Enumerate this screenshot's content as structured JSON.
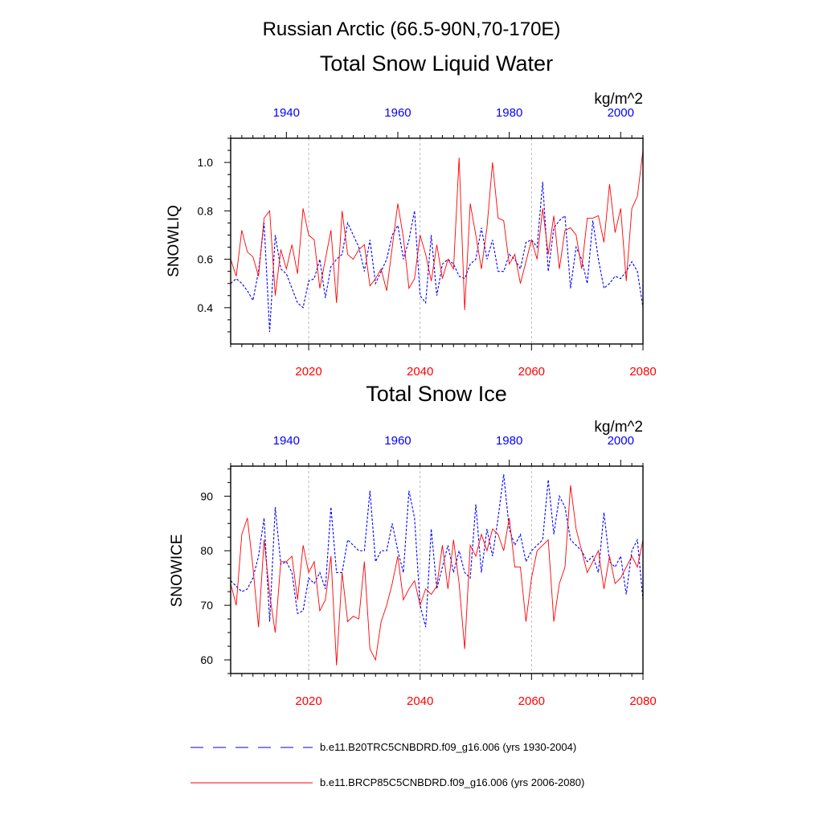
{
  "figure_title": "Russian Arctic (66.5-90N,70-170E)",
  "colors": {
    "historical": "#0000ff",
    "future": "#ff0000",
    "axis": "#000000",
    "grid": "#aaaaaa"
  },
  "legend": [
    {
      "label": "b.e11.B20TRC5CNBDRD.f09_g16.006 (yrs 1930-2004)",
      "style": "dashed",
      "color": "#0000ff"
    },
    {
      "label": "b.e11.BRCP85C5CNBDRD.f09_g16.006 (yrs 2006-2080)",
      "style": "solid",
      "color": "#ff0000"
    }
  ],
  "chart_data": [
    {
      "type": "line",
      "title": "Total Snow Liquid Water",
      "ylabel": "SNOWLIQ",
      "units": "kg/m^2",
      "ylim": [
        0.25,
        1.1
      ],
      "yticks": [
        0.4,
        0.6,
        0.8,
        1.0
      ],
      "ytick_labels": [
        "0.4",
        "0.6",
        "0.8",
        "1.0"
      ],
      "bottom_axis": {
        "range": [
          2006,
          2080
        ],
        "ticks": [
          2020,
          2040,
          2060,
          2080
        ],
        "tick_labels": [
          "2020",
          "2040",
          "2060",
          "2080"
        ]
      },
      "top_axis": {
        "range": [
          1930,
          2004
        ],
        "ticks": [
          1940,
          1960,
          1980,
          2000
        ],
        "tick_labels": [
          "1940",
          "1960",
          "1980",
          "2000"
        ]
      },
      "series": [
        {
          "name": "b.e11.B20TRC5CNBDRD.f09_g16.006 (yrs 1930-2004)",
          "axis": "top",
          "x_start": 1930,
          "values": [
            0.5,
            0.52,
            0.5,
            0.47,
            0.43,
            0.55,
            0.75,
            0.3,
            0.7,
            0.56,
            0.54,
            0.48,
            0.42,
            0.4,
            0.51,
            0.52,
            0.6,
            0.44,
            0.57,
            0.6,
            0.62,
            0.75,
            0.7,
            0.65,
            0.55,
            0.68,
            0.5,
            0.55,
            0.6,
            0.7,
            0.74,
            0.6,
            0.68,
            0.8,
            0.45,
            0.42,
            0.7,
            0.45,
            0.58,
            0.6,
            0.58,
            0.53,
            0.52,
            0.58,
            0.6,
            0.73,
            0.6,
            0.68,
            0.55,
            0.55,
            0.62,
            0.6,
            0.56,
            0.67,
            0.68,
            0.65,
            0.92,
            0.55,
            0.73,
            0.76,
            0.78,
            0.48,
            0.65,
            0.6,
            0.5,
            0.76,
            0.6,
            0.48,
            0.5,
            0.53,
            0.52,
            0.55,
            0.59,
            0.55,
            0.4
          ]
        },
        {
          "name": "b.e11.BRCP85C5CNBDRD.f09_g16.006 (yrs 2006-2080)",
          "axis": "bottom",
          "x_start": 2006,
          "values": [
            0.6,
            0.53,
            0.72,
            0.63,
            0.61,
            0.53,
            0.77,
            0.8,
            0.45,
            0.64,
            0.56,
            0.66,
            0.54,
            0.81,
            0.7,
            0.68,
            0.48,
            0.6,
            0.72,
            0.42,
            0.8,
            0.62,
            0.6,
            0.64,
            0.66,
            0.49,
            0.52,
            0.56,
            0.47,
            0.65,
            0.83,
            0.69,
            0.48,
            0.52,
            0.7,
            0.62,
            0.51,
            0.66,
            0.52,
            0.6,
            0.56,
            1.02,
            0.39,
            0.83,
            0.7,
            0.56,
            0.73,
            1.0,
            0.77,
            0.76,
            0.58,
            0.62,
            0.5,
            0.59,
            0.68,
            0.6,
            0.81,
            0.62,
            0.78,
            0.56,
            0.72,
            0.73,
            0.7,
            0.56,
            0.77,
            0.77,
            0.78,
            0.67,
            0.91,
            0.71,
            0.81,
            0.51,
            0.81,
            0.86,
            1.05
          ]
        }
      ]
    },
    {
      "type": "line",
      "title": "Total Snow Ice",
      "ylabel": "SNOWICE",
      "units": "kg/m^2",
      "ylim": [
        57.5,
        95.5
      ],
      "yticks": [
        60,
        70,
        80,
        90
      ],
      "ytick_labels": [
        "60",
        "70",
        "80",
        "90"
      ],
      "bottom_axis": {
        "range": [
          2006,
          2080
        ],
        "ticks": [
          2020,
          2040,
          2060,
          2080
        ],
        "tick_labels": [
          "2020",
          "2040",
          "2060",
          "2080"
        ]
      },
      "top_axis": {
        "range": [
          1930,
          2004
        ],
        "ticks": [
          1940,
          1960,
          1980,
          2000
        ],
        "tick_labels": [
          "1940",
          "1960",
          "1980",
          "2000"
        ]
      },
      "series": [
        {
          "name": "b.e11.B20TRC5CNBDRD.f09_g16.006 (yrs 1930-2004)",
          "axis": "top",
          "x_start": 1930,
          "values": [
            74.5,
            73.5,
            72.5,
            73.0,
            75.0,
            79.0,
            86.0,
            67.0,
            88.0,
            77.5,
            78.0,
            76.0,
            68.5,
            69.0,
            75.0,
            74.0,
            76.0,
            73.0,
            88.0,
            76.0,
            76.0,
            82.0,
            81.0,
            80.0,
            80.0,
            91.0,
            78.0,
            80.0,
            80.0,
            85.0,
            80.0,
            76.0,
            91.0,
            86.0,
            70.0,
            66.0,
            84.0,
            73.0,
            77.0,
            81.0,
            76.0,
            80.0,
            76.0,
            75.0,
            88.5,
            76.0,
            84.0,
            79.0,
            86.0,
            94.0,
            84.0,
            81.0,
            83.0,
            78.0,
            80.0,
            81.0,
            82.0,
            93.0,
            83.0,
            90.0,
            88.0,
            82.0,
            81.0,
            80.0,
            78.0,
            79.0,
            76.0,
            87.0,
            78.0,
            77.0,
            79.0,
            72.0,
            80.0,
            82.0,
            71.0
          ]
        },
        {
          "name": "b.e11.BRCP85C5CNBDRD.f09_g16.006 (yrs 2006-2080)",
          "axis": "bottom",
          "x_start": 2006,
          "values": [
            74.0,
            70.0,
            83.0,
            86.0,
            77.0,
            66.0,
            82.0,
            72.0,
            65.0,
            78.0,
            78.0,
            79.0,
            71.0,
            81.0,
            76.0,
            78.0,
            69.0,
            71.0,
            79.0,
            59.0,
            76.0,
            67.0,
            68.0,
            67.5,
            78.0,
            62.0,
            60.0,
            67.0,
            70.0,
            74.0,
            79.0,
            71.0,
            73.0,
            74.5,
            70.0,
            73.0,
            72.0,
            73.5,
            81.0,
            73.0,
            82.0,
            74.0,
            62.0,
            81.0,
            79.0,
            83.0,
            80.0,
            84.0,
            83.0,
            80.0,
            86.0,
            77.0,
            77.0,
            67.0,
            75.0,
            80.0,
            81.0,
            82.0,
            67.0,
            74.0,
            77.0,
            92.0,
            84.0,
            80.0,
            76.0,
            78.0,
            80.0,
            73.0,
            79.0,
            74.0,
            75.0,
            77.0,
            79.0,
            77.0,
            82.0
          ]
        }
      ]
    }
  ]
}
